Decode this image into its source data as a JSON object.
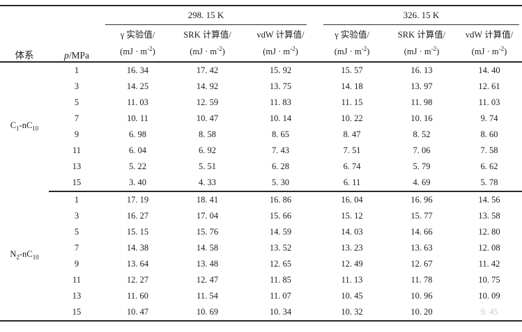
{
  "colors": {
    "text": "#1b1b1b",
    "rule": "#262626",
    "faded_text": "#c8c8c8",
    "background": "#ffffff"
  },
  "table": {
    "header": {
      "system_label": "体系",
      "pressure_italic": "p",
      "pressure_rest": "/MPa",
      "temp_groups": [
        "298. 15 K",
        "326. 15 K"
      ],
      "sub_columns": [
        "γ 实验值/",
        "SRK 计算值/",
        "vdW 计算值/"
      ],
      "unit_prefix": "(mJ · m",
      "unit_sup": "-2",
      "unit_suffix": ")"
    },
    "blocks": [
      {
        "system_parts": {
          "el": "C",
          "sub1": "1",
          "mid": "-nC",
          "sub2": "10"
        },
        "rows": [
          {
            "p": "1",
            "cells": [
              "16. 34",
              "17. 42",
              "15. 92",
              "15. 57",
              "16. 13",
              "14. 40"
            ]
          },
          {
            "p": "3",
            "cells": [
              "14. 25",
              "14. 92",
              "13. 75",
              "14. 18",
              "13. 97",
              "12. 61"
            ]
          },
          {
            "p": "5",
            "cells": [
              "11. 03",
              "12. 59",
              "11. 83",
              "11. 15",
              "11. 98",
              "11. 03"
            ]
          },
          {
            "p": "7",
            "cells": [
              "10. 11",
              "10. 47",
              "10. 14",
              "10. 22",
              "10. 16",
              "9. 74"
            ]
          },
          {
            "p": "9",
            "cells": [
              "6. 98",
              "8. 58",
              "8. 65",
              "8. 47",
              "8. 52",
              "8. 60"
            ]
          },
          {
            "p": "11",
            "cells": [
              "6. 04",
              "6. 92",
              "7. 43",
              "7. 51",
              "7. 06",
              "7. 58"
            ]
          },
          {
            "p": "13",
            "cells": [
              "5. 22",
              "5. 51",
              "6. 28",
              "6. 74",
              "5. 79",
              "6. 62"
            ]
          },
          {
            "p": "15",
            "cells": [
              "3. 40",
              "4. 33",
              "5. 30",
              "6. 11",
              "4. 69",
              "5. 78"
            ]
          }
        ]
      },
      {
        "system_parts": {
          "el": "N",
          "sub1": "2",
          "mid": "-nC",
          "sub2": "10"
        },
        "rows": [
          {
            "p": "1",
            "cells": [
              "17. 19",
              "18. 41",
              "16. 86",
              "16. 04",
              "16. 96",
              "14. 56"
            ]
          },
          {
            "p": "3",
            "cells": [
              "16. 27",
              "17. 04",
              "15. 66",
              "15. 12",
              "15. 77",
              "13. 58"
            ]
          },
          {
            "p": "5",
            "cells": [
              "15. 15",
              "15. 76",
              "14. 59",
              "14. 03",
              "14. 66",
              "12. 80"
            ]
          },
          {
            "p": "7",
            "cells": [
              "14. 38",
              "14. 58",
              "13. 52",
              "13. 23",
              "13. 63",
              "12. 08"
            ]
          },
          {
            "p": "9",
            "cells": [
              "13. 64",
              "13. 48",
              "12. 65",
              "12. 49",
              "12. 67",
              "11. 42"
            ]
          },
          {
            "p": "11",
            "cells": [
              "12. 27",
              "12. 47",
              "11. 85",
              "11. 13",
              "11. 78",
              "10. 75"
            ]
          },
          {
            "p": "13",
            "cells": [
              "11. 60",
              "11. 54",
              "11. 07",
              "10. 45",
              "10. 96",
              "10. 09"
            ]
          },
          {
            "p": "15",
            "cells": [
              "10. 47",
              "10. 69",
              "10. 34",
              "10. 32",
              "10. 20",
              "9. 45"
            ],
            "faded_cells": [
              5
            ]
          }
        ]
      }
    ]
  },
  "chart_data": {
    "type": "table",
    "title": "界面张力实验值与计算值对比表",
    "row_header": "p/MPa",
    "pressures_MPa": [
      1,
      3,
      5,
      7,
      9,
      11,
      13,
      15
    ],
    "series": [
      {
        "system": "C1-nC10",
        "temperature_K": 298.15,
        "gamma_exp": [
          16.34,
          14.25,
          11.03,
          10.11,
          6.98,
          6.04,
          5.22,
          3.4
        ],
        "SRK_calc": [
          17.42,
          14.92,
          12.59,
          10.47,
          8.58,
          6.92,
          5.51,
          4.33
        ],
        "vdW_calc": [
          15.92,
          13.75,
          11.83,
          10.14,
          8.65,
          7.43,
          6.28,
          5.3
        ]
      },
      {
        "system": "C1-nC10",
        "temperature_K": 326.15,
        "gamma_exp": [
          15.57,
          14.18,
          11.15,
          10.22,
          8.47,
          7.51,
          6.74,
          6.11
        ],
        "SRK_calc": [
          16.13,
          13.97,
          11.98,
          10.16,
          8.52,
          7.06,
          5.79,
          4.69
        ],
        "vdW_calc": [
          14.4,
          12.61,
          11.03,
          9.74,
          8.6,
          7.58,
          6.62,
          5.78
        ]
      },
      {
        "system": "N2-nC10",
        "temperature_K": 298.15,
        "gamma_exp": [
          17.19,
          16.27,
          15.15,
          14.38,
          13.64,
          12.27,
          11.6,
          10.47
        ],
        "SRK_calc": [
          18.41,
          17.04,
          15.76,
          14.58,
          13.48,
          12.47,
          11.54,
          10.69
        ],
        "vdW_calc": [
          16.86,
          15.66,
          14.59,
          13.52,
          12.65,
          11.85,
          11.07,
          10.34
        ]
      },
      {
        "system": "N2-nC10",
        "temperature_K": 326.15,
        "gamma_exp": [
          16.04,
          15.12,
          14.03,
          13.23,
          12.49,
          11.13,
          10.45,
          10.32
        ],
        "SRK_calc": [
          16.96,
          15.77,
          14.66,
          13.63,
          12.67,
          11.78,
          10.96,
          10.2
        ],
        "vdW_calc": [
          14.56,
          13.58,
          12.8,
          12.08,
          11.42,
          10.75,
          10.09,
          9.45
        ]
      }
    ],
    "units": "mJ·m^-2"
  }
}
